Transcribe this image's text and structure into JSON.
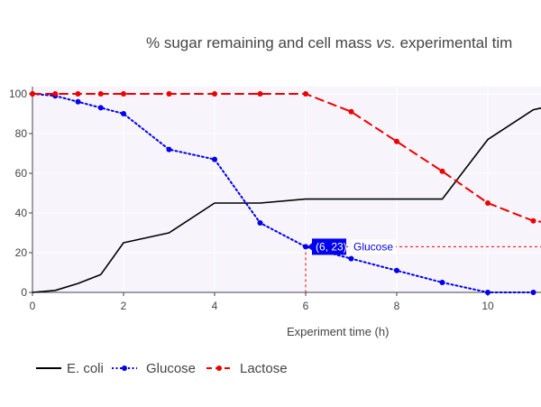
{
  "chart_data": {
    "type": "line",
    "title_plain": "% sugar remaining and cell mass ",
    "title_italic": "vs.",
    "title_tail": " experimental tim",
    "xlabel": "Experiment time (h)",
    "ylabel": "",
    "xlim": [
      0,
      11.2
    ],
    "ylim": [
      0,
      100
    ],
    "x_ticks": [
      0,
      2,
      4,
      6,
      8,
      10
    ],
    "y_ticks": [
      0,
      20,
      40,
      60,
      80,
      100
    ],
    "grid": true,
    "legend_position": "bottom-left",
    "series": [
      {
        "name": "E. coli",
        "color": "#000000",
        "dash": "solid",
        "markers": false,
        "x": [
          0,
          0.5,
          1,
          1.5,
          2,
          3,
          4,
          5,
          6,
          7,
          8,
          9,
          10,
          11,
          11.2
        ],
        "y": [
          0,
          1,
          4.5,
          9,
          25,
          30,
          45,
          45,
          47,
          47,
          47,
          47,
          77,
          92,
          93
        ]
      },
      {
        "name": "Glucose",
        "color": "#0000ee",
        "dash": "dot",
        "markers": true,
        "x": [
          0,
          0.5,
          1,
          1.5,
          2,
          3,
          4,
          5,
          6,
          7,
          8,
          9,
          10,
          11
        ],
        "y": [
          100,
          99,
          96,
          93,
          90,
          72,
          67,
          35,
          23,
          17,
          11,
          5,
          0,
          0
        ]
      },
      {
        "name": "Lactose",
        "color": "#ee0000",
        "dash": "dash",
        "markers": true,
        "x": [
          0,
          0.5,
          1,
          1.5,
          2,
          3,
          4,
          5,
          6,
          7,
          8,
          9,
          10,
          11,
          11.2
        ],
        "y": [
          100,
          100,
          100,
          100,
          100,
          100,
          100,
          100,
          100,
          91,
          76,
          61,
          45,
          36,
          35.5
        ]
      }
    ],
    "hover": {
      "series": "Glucose",
      "x": 6,
      "y": 23,
      "label": "(6, 23)",
      "name": "Glucose"
    }
  },
  "colors": {
    "plot_bg": "#f7f5fb",
    "grid": "#ffffff",
    "axis": "#444444"
  }
}
